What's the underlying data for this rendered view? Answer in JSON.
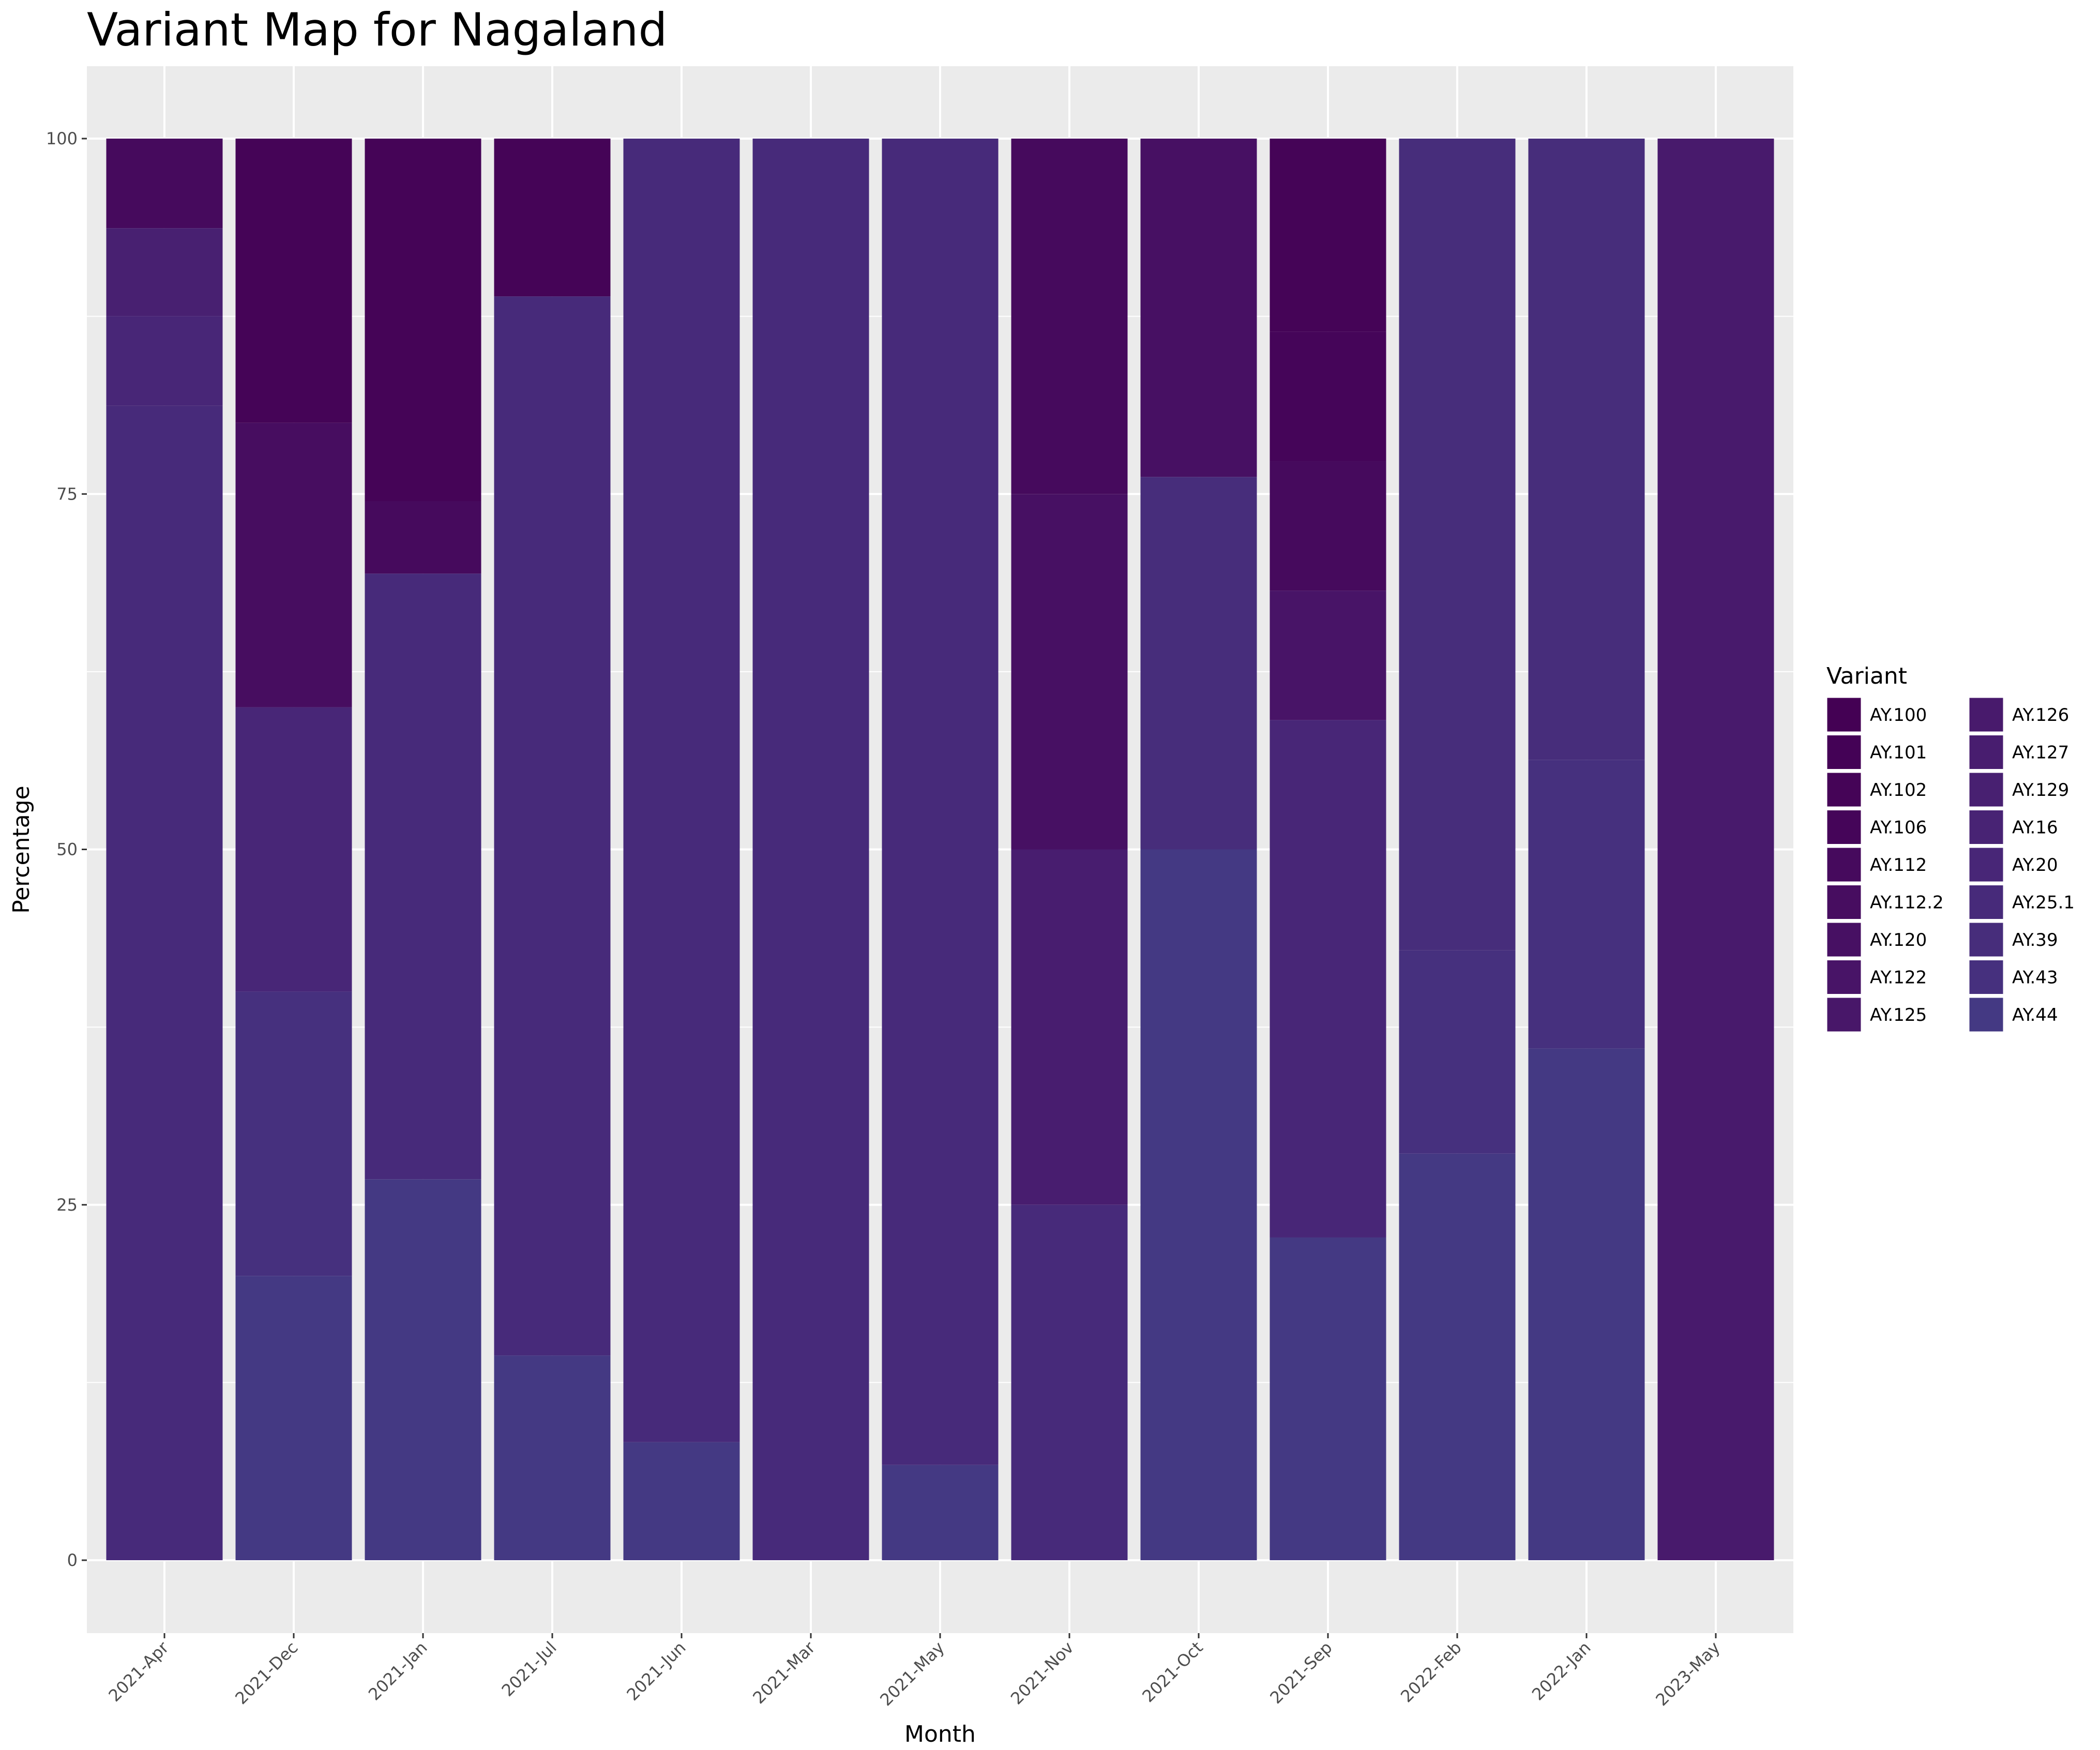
{
  "chart_data": {
    "type": "bar",
    "stacked": true,
    "title": "Variant Map for Nagaland",
    "xlabel": "Month",
    "ylabel": "Percentage",
    "ylim": [
      0,
      100
    ],
    "yticks": [
      0,
      25,
      50,
      75,
      100
    ],
    "grid": true,
    "legend": {
      "title": "Variant",
      "position": "right",
      "columns": 2
    },
    "categories": [
      "2021-Apr",
      "2021-Dec",
      "2021-Jan",
      "2021-Jul",
      "2021-Jun",
      "2021-Mar",
      "2021-May",
      "2021-Nov",
      "2021-Oct",
      "2021-Sep",
      "2022-Feb",
      "2022-Jan",
      "2023-May"
    ],
    "series": [
      {
        "name": "AY.100",
        "color": "#440154",
        "values": [
          0,
          0,
          0,
          0,
          0,
          0,
          0,
          0,
          0,
          0,
          0,
          0,
          0
        ]
      },
      {
        "name": "AY.101",
        "color": "#440256",
        "values": [
          0,
          0,
          0,
          0,
          0,
          0,
          0,
          0,
          0,
          0,
          0,
          0,
          0
        ]
      },
      {
        "name": "AY.102",
        "color": "#450457",
        "values": [
          0,
          20,
          25.5,
          11.1,
          0,
          0,
          0,
          0,
          0,
          13.6,
          0,
          0,
          0
        ]
      },
      {
        "name": "AY.106",
        "color": "#450559",
        "values": [
          0,
          0,
          0,
          0,
          0,
          0,
          0,
          0,
          0,
          9.1,
          0,
          0,
          0
        ]
      },
      {
        "name": "AY.112",
        "color": "#460a5d",
        "values": [
          6.3,
          0,
          5.1,
          0,
          0,
          0,
          0,
          25,
          0,
          9.1,
          0,
          0,
          0
        ]
      },
      {
        "name": "AY.112.2",
        "color": "#470d60",
        "values": [
          0,
          20,
          0,
          0,
          0,
          0,
          0,
          0,
          0,
          0,
          0,
          0,
          0
        ]
      },
      {
        "name": "AY.120",
        "color": "#471063",
        "values": [
          0,
          0,
          0,
          0,
          0,
          0,
          0,
          25,
          23.8,
          0,
          0,
          0,
          0
        ]
      },
      {
        "name": "AY.122",
        "color": "#481467",
        "values": [
          0,
          0,
          0,
          0,
          0,
          0,
          0,
          0,
          0,
          9.1,
          0,
          0,
          0
        ]
      },
      {
        "name": "AY.125",
        "color": "#481769",
        "values": [
          0,
          0,
          0,
          0,
          0,
          0,
          0,
          0,
          0,
          0,
          0,
          0,
          0
        ]
      },
      {
        "name": "AY.126",
        "color": "#481a6c",
        "values": [
          0,
          0,
          0,
          0,
          0,
          0,
          0,
          0,
          0,
          0,
          0,
          0,
          100
        ]
      },
      {
        "name": "AY.127",
        "color": "#481d6f",
        "values": [
          0,
          0,
          0,
          0,
          0,
          0,
          0,
          25,
          0,
          0,
          0,
          0,
          0
        ]
      },
      {
        "name": "AY.129",
        "color": "#482071",
        "values": [
          6.2,
          0,
          0,
          0,
          0,
          0,
          0,
          0,
          0,
          0,
          0,
          0,
          0
        ]
      },
      {
        "name": "AY.16",
        "color": "#482374",
        "values": [
          0,
          0,
          0,
          0,
          0,
          0,
          0,
          0,
          0,
          0,
          0,
          0,
          0
        ]
      },
      {
        "name": "AY.20",
        "color": "#482677",
        "values": [
          6.3,
          20,
          0,
          0,
          0,
          0,
          0,
          0,
          0,
          36.4,
          0,
          0,
          0
        ]
      },
      {
        "name": "AY.25.1",
        "color": "#472a7a",
        "values": [
          81.2,
          0,
          42.6,
          74.5,
          91.7,
          100,
          93.3,
          25,
          0,
          0,
          0,
          0,
          0
        ]
      },
      {
        "name": "AY.39",
        "color": "#472d7b",
        "values": [
          0,
          0,
          0,
          0,
          0,
          0,
          0,
          0,
          26.2,
          0,
          57.1,
          43.7,
          0
        ]
      },
      {
        "name": "AY.43",
        "color": "#46307e",
        "values": [
          0,
          20,
          0,
          0,
          0,
          0,
          0,
          0,
          0,
          0,
          14.3,
          20.3,
          0
        ]
      },
      {
        "name": "AY.44",
        "color": "#443983",
        "values": [
          0,
          20,
          26.8,
          14.4,
          8.3,
          0,
          6.7,
          0,
          50,
          22.7,
          28.6,
          36,
          0
        ]
      }
    ]
  }
}
